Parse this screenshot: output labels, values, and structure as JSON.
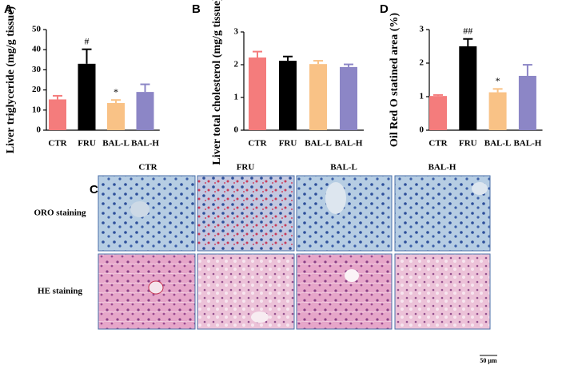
{
  "chart_data": [
    {
      "type": "bar",
      "panel": "A",
      "ylabel": "Liver triglyceride (mg/g tissue)",
      "categories": [
        "CTR",
        "FRU",
        "BAL-L",
        "BAL-H"
      ],
      "values": [
        15.3,
        33,
        13.5,
        19
      ],
      "errors": [
        1.8,
        7.2,
        1.5,
        3.8
      ],
      "colors": [
        "#f47c7c",
        "#000000",
        "#f9c286",
        "#8c86c6"
      ],
      "annotations": [
        null,
        "#",
        "*",
        null
      ],
      "ylim": [
        0,
        50
      ],
      "yticks": [
        0,
        10,
        20,
        30,
        40,
        50
      ]
    },
    {
      "type": "bar",
      "panel": "B",
      "ylabel": "Liver total cholesterol (mg/g tissue)",
      "categories": [
        "CTR",
        "FRU",
        "BAL-L",
        "BAL-H"
      ],
      "values": [
        2.22,
        2.12,
        2.02,
        1.93
      ],
      "errors": [
        0.18,
        0.13,
        0.1,
        0.08
      ],
      "colors": [
        "#f47c7c",
        "#000000",
        "#f9c286",
        "#8c86c6"
      ],
      "ylim": [
        0,
        3
      ],
      "yticks": [
        0,
        1,
        2,
        3
      ]
    },
    {
      "type": "bar",
      "panel": "D",
      "ylabel": "Oil Red O statined area (%)",
      "categories": [
        "CTR",
        "FRU",
        "BAL-L",
        "BAL-H"
      ],
      "values": [
        1.02,
        2.5,
        1.13,
        1.62
      ],
      "errors": [
        0.03,
        0.22,
        0.1,
        0.33
      ],
      "colors": [
        "#f47c7c",
        "#000000",
        "#f9c286",
        "#8c86c6"
      ],
      "annotations": [
        null,
        "##",
        "*",
        null
      ],
      "ylim": [
        0,
        3
      ],
      "yticks": [
        0,
        1,
        2,
        3
      ]
    }
  ],
  "panel_c": {
    "panel": "C",
    "columns": [
      "CTR",
      "FRU",
      "BAL-L",
      "BAL-H"
    ],
    "rows": [
      "ORO staining",
      "HE staining"
    ],
    "scale_bar": "50 μm"
  }
}
